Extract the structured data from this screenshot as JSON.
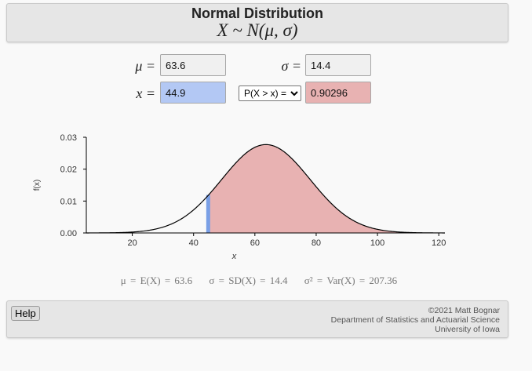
{
  "header": {
    "title": "Normal Distribution",
    "subtitle": "X ~ N(μ, σ)"
  },
  "inputs": {
    "mu_label": "μ =",
    "mu_value": "63.6",
    "sigma_label": "σ =",
    "sigma_value": "14.4",
    "x_label": "x =",
    "x_value": "44.9",
    "prob_selected": "P(X > x) =",
    "prob_value": "0.90296"
  },
  "colors": {
    "shade": "#e8b2b2",
    "marker": "#7aa0e6",
    "curve": "#000000"
  },
  "chart_data": {
    "type": "area",
    "distribution": "normal",
    "mu": 63.6,
    "sigma": 14.4,
    "shade_from": 44.9,
    "shade_direction": "right",
    "xlim": [
      5,
      122
    ],
    "ylim": [
      0,
      0.03
    ],
    "xticks": [
      20,
      40,
      60,
      80,
      100,
      120
    ],
    "yticks": [
      "0.00",
      "0.01",
      "0.02",
      "0.03"
    ],
    "xlabel": "x",
    "ylabel": "f(x)"
  },
  "summary": {
    "mean": "μ = E(X) = 63.6",
    "sd": "σ = SD(X) = 14.4",
    "var": "σ² = Var(X) = 207.36"
  },
  "footer": {
    "help_label": "Help",
    "credit_line1": "©2021 Matt Bognar",
    "credit_line2": "Department of Statistics and Actuarial Science",
    "credit_line3": "University of Iowa"
  }
}
